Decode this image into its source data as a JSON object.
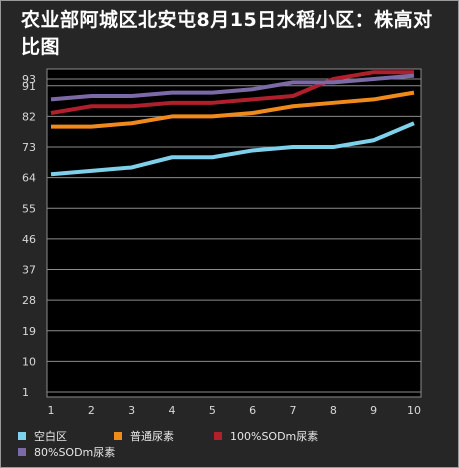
{
  "chart_data": {
    "type": "line",
    "title": "农业部阿城区北安屯8月15日水稻小区：株高对比图",
    "x": [
      1,
      2,
      3,
      4,
      5,
      6,
      7,
      8,
      9,
      10
    ],
    "y_ticks": [
      1,
      10,
      19,
      28,
      37,
      46,
      55,
      64,
      73,
      82,
      91,
      93
    ],
    "ylim": [
      1,
      93
    ],
    "grid": true,
    "legend_position": "bottom",
    "series": [
      {
        "name": "空白区",
        "color": "#7fd0ea",
        "values": [
          65,
          66,
          67,
          70,
          70,
          72,
          73,
          73,
          75,
          80
        ]
      },
      {
        "name": "普通尿素",
        "color": "#f08a1c",
        "values": [
          79,
          79,
          80,
          82,
          82,
          83,
          85,
          86,
          87,
          89
        ]
      },
      {
        "name": "100%SODm尿素",
        "color": "#b0202c",
        "values": [
          83,
          85,
          85,
          86,
          86,
          87,
          88,
          93,
          95,
          95
        ]
      },
      {
        "name": "80%SODm尿素",
        "color": "#7b6aa6",
        "values": [
          87,
          88,
          88,
          89,
          89,
          90,
          92,
          92,
          93,
          94
        ]
      }
    ]
  }
}
